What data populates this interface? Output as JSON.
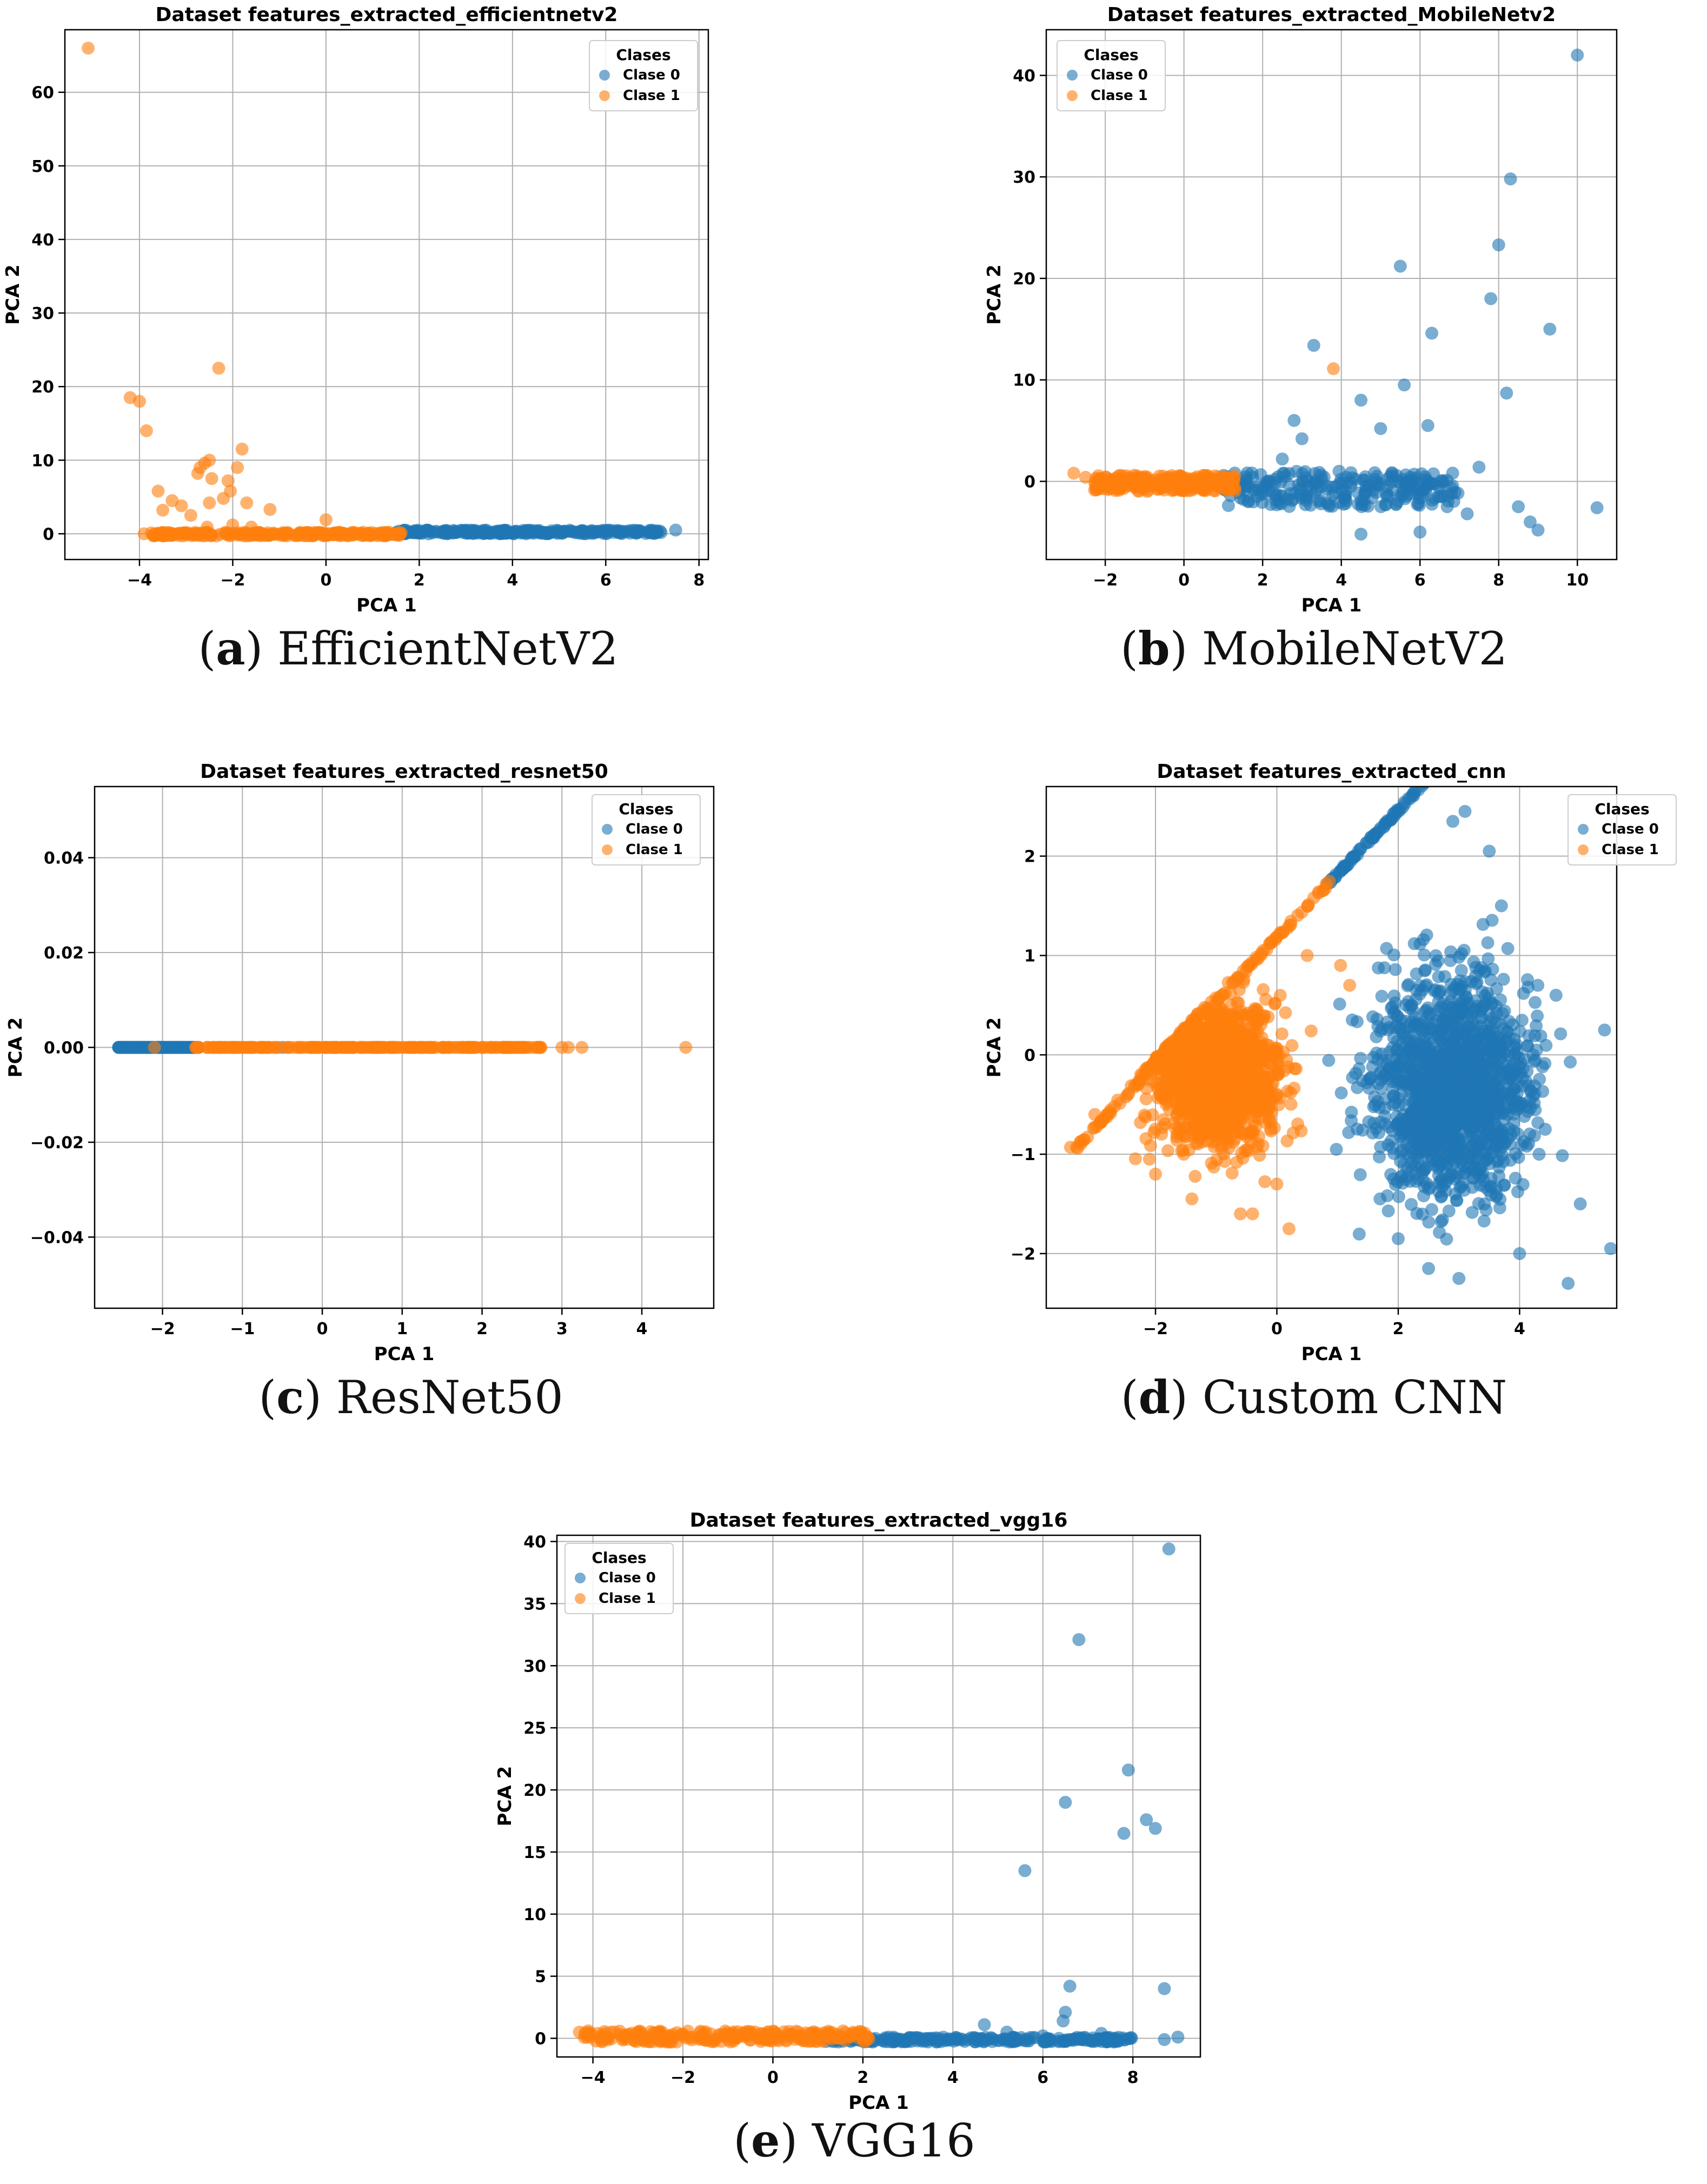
{
  "colors": {
    "clase0": "#1f77b4",
    "clase1": "#ff7f0e",
    "grid": "#b0b0b0",
    "axis": "#000000"
  },
  "legend_title": "Clases",
  "captions": [
    {
      "letter": "a",
      "paren_open": "(",
      "paren_close": ")",
      "text": " EfficientNetV2"
    },
    {
      "letter": "b",
      "paren_open": "(",
      "paren_close": ")",
      "text": " MobileNetV2"
    },
    {
      "letter": "c",
      "paren_open": "(",
      "paren_close": ")",
      "text": " ResNet50"
    },
    {
      "letter": "d",
      "paren_open": "(",
      "paren_close": ")",
      "text": " Custom CNN"
    },
    {
      "letter": "e",
      "paren_open": "(",
      "paren_close": ")",
      "text": " VGG16"
    }
  ],
  "chart_data": [
    {
      "type": "scatter",
      "title": "Dataset features_extracted_efficientnetv2",
      "xlabel": "PCA 1",
      "ylabel": "PCA 2",
      "xlim": [
        -5.6,
        8.2
      ],
      "ylim": [
        -3.5,
        68.5
      ],
      "xticks": [
        -4,
        -2,
        0,
        2,
        4,
        6,
        8
      ],
      "xtick_labels": [
        "−4",
        "−2",
        "0",
        "2",
        "4",
        "6",
        "8"
      ],
      "yticks": [
        0,
        10,
        20,
        30,
        40,
        50,
        60
      ],
      "ytick_labels": [
        "0",
        "10",
        "20",
        "30",
        "40",
        "50",
        "60"
      ],
      "grid": true,
      "legend_position": "upper right",
      "series": [
        {
          "name": "Clase 0",
          "band_x": [
            1.5,
            7.2
          ],
          "band_y": [
            0.0,
            0.5
          ],
          "points": [
            [
              7.5,
              0.5
            ],
            [
              7.1,
              0.4
            ],
            [
              6.6,
              0.3
            ],
            [
              6.2,
              0.4
            ],
            [
              5.8,
              0.3
            ],
            [
              5.4,
              0.2
            ],
            [
              5.0,
              0.3
            ],
            [
              4.6,
              0.2
            ],
            [
              4.2,
              0.2
            ],
            [
              3.8,
              0.1
            ],
            [
              3.4,
              0.1
            ],
            [
              3.0,
              0.1
            ],
            [
              2.6,
              0.0
            ],
            [
              2.2,
              0.0
            ],
            [
              2.0,
              0.1
            ]
          ]
        },
        {
          "name": "Clase 1",
          "band_x": [
            -3.8,
            1.7
          ],
          "band_y": [
            -0.3,
            0.2
          ],
          "points": [
            [
              -5.1,
              66
            ],
            [
              -4.2,
              18.5
            ],
            [
              -4.0,
              18
            ],
            [
              -3.85,
              14
            ],
            [
              -3.6,
              5.8
            ],
            [
              -3.5,
              3.2
            ],
            [
              -3.3,
              4.5
            ],
            [
              -3.1,
              3.8
            ],
            [
              -2.7,
              9
            ],
            [
              -2.6,
              9.6
            ],
            [
              -2.75,
              8.2
            ],
            [
              -2.5,
              10
            ],
            [
              -2.45,
              7.5
            ],
            [
              -2.3,
              22.5
            ],
            [
              -2.2,
              4.8
            ],
            [
              -2.1,
              7.2
            ],
            [
              -2.05,
              5.8
            ],
            [
              -1.8,
              11.5
            ],
            [
              -1.9,
              9
            ],
            [
              -1.7,
              4.2
            ],
            [
              -1.2,
              3.3
            ],
            [
              -2.5,
              4.2
            ],
            [
              -2.9,
              2.5
            ],
            [
              -2.0,
              1.2
            ],
            [
              -1.6,
              0.9
            ],
            [
              0.0,
              1.9
            ],
            [
              -2.55,
              0.9
            ],
            [
              -3.9,
              0.0
            ]
          ]
        }
      ]
    },
    {
      "type": "scatter",
      "title": "Dataset features_extracted_MobileNetv2",
      "xlabel": "PCA 1",
      "ylabel": "PCA 2",
      "xlim": [
        -3.5,
        11.0
      ],
      "ylim": [
        -7.7,
        44.5
      ],
      "xticks": [
        -2,
        0,
        2,
        4,
        6,
        8,
        10
      ],
      "xtick_labels": [
        "−2",
        "0",
        "2",
        "4",
        "6",
        "8",
        "10"
      ],
      "yticks": [
        0,
        10,
        20,
        30,
        40
      ],
      "ytick_labels": [
        "0",
        "10",
        "20",
        "30",
        "40"
      ],
      "grid": true,
      "legend_position": "upper left",
      "series": [
        {
          "name": "Clase 0",
          "band_x": [
            1.0,
            7.0
          ],
          "band_y": [
            -2.5,
            1.0
          ],
          "points": [
            [
              10.0,
              42
            ],
            [
              8.3,
              29.8
            ],
            [
              8.0,
              23.3
            ],
            [
              7.8,
              18
            ],
            [
              9.3,
              15
            ],
            [
              6.3,
              14.6
            ],
            [
              5.5,
              21.2
            ],
            [
              3.3,
              13.4
            ],
            [
              5.6,
              9.5
            ],
            [
              6.2,
              5.5
            ],
            [
              8.2,
              8.7
            ],
            [
              4.5,
              8.0
            ],
            [
              2.8,
              6
            ],
            [
              5.0,
              5.2
            ],
            [
              3.0,
              4.2
            ],
            [
              2.5,
              2.2
            ],
            [
              7.5,
              1.4
            ],
            [
              8.8,
              -4.0
            ],
            [
              9.0,
              -4.8
            ],
            [
              10.5,
              -2.6
            ],
            [
              6.0,
              -5.0
            ],
            [
              4.5,
              -5.2
            ],
            [
              8.5,
              -2.5
            ],
            [
              7.2,
              -3.2
            ]
          ]
        },
        {
          "name": "Clase 1",
          "band_x": [
            -2.3,
            1.3
          ],
          "band_y": [
            -1.0,
            0.6
          ],
          "points": [
            [
              -2.8,
              0.8
            ],
            [
              -2.5,
              0.4
            ],
            [
              3.8,
              11.1
            ],
            [
              1.1,
              0.2
            ],
            [
              0.9,
              -0.6
            ],
            [
              1.3,
              -0.9
            ]
          ]
        }
      ]
    },
    {
      "type": "scatter",
      "title": "Dataset features_extracted_resnet50",
      "xlabel": "PCA 1",
      "ylabel": "PCA 2",
      "xlim": [
        -2.85,
        4.9
      ],
      "ylim": [
        -0.055,
        0.055
      ],
      "xticks": [
        -2,
        -1,
        0,
        1,
        2,
        3,
        4
      ],
      "xtick_labels": [
        "−2",
        "−1",
        "0",
        "1",
        "2",
        "3",
        "4"
      ],
      "yticks": [
        -0.04,
        -0.02,
        0.0,
        0.02,
        0.04
      ],
      "ytick_labels": [
        "−0.04",
        "−0.02",
        "0.00",
        "0.02",
        "0.04"
      ],
      "grid": true,
      "legend_position": "upper right",
      "series": [
        {
          "name": "Clase 0",
          "band_x": [
            -2.55,
            -1.55
          ],
          "band_y": [
            0,
            0
          ],
          "points": [
            [
              -2.55,
              0
            ],
            [
              -1.3,
              0
            ],
            [
              -0.5,
              0
            ]
          ]
        },
        {
          "name": "Clase 1",
          "band_x": [
            -1.6,
            2.75
          ],
          "band_y": [
            0,
            0
          ],
          "points": [
            [
              3.0,
              0
            ],
            [
              3.08,
              0
            ],
            [
              3.25,
              0
            ],
            [
              4.55,
              0
            ],
            [
              -2.1,
              0
            ]
          ]
        }
      ]
    },
    {
      "type": "scatter",
      "title": "Dataset features_extracted_cnn",
      "xlabel": "PCA 1",
      "ylabel": "PCA 2",
      "xlim": [
        -3.8,
        5.6
      ],
      "ylim": [
        -2.55,
        2.7
      ],
      "xticks": [
        -2,
        0,
        2,
        4
      ],
      "xtick_labels": [
        "−2",
        "0",
        "2",
        "4"
      ],
      "yticks": [
        -2,
        -1,
        0,
        1,
        2
      ],
      "ytick_labels": [
        "−2",
        "−1",
        "0",
        "1",
        "2"
      ],
      "grid": true,
      "legend_position": "upper right",
      "series": [
        {
          "name": "Clase 0",
          "blob_center": [
            2.9,
            -0.3
          ],
          "blob_spread": [
            0.9,
            0.75
          ],
          "points": [
            [
              3.1,
              2.45
            ],
            [
              2.9,
              2.35
            ],
            [
              3.5,
              2.05
            ],
            [
              3.7,
              1.5
            ],
            [
              4.3,
              0.7
            ],
            [
              4.6,
              0.6
            ],
            [
              5.4,
              0.25
            ],
            [
              5.5,
              -1.95
            ],
            [
              5.0,
              -1.5
            ],
            [
              4.8,
              -2.3
            ],
            [
              3.0,
              -2.25
            ],
            [
              2.5,
              -2.15
            ],
            [
              4.0,
              -2.0
            ],
            [
              1.7,
              -1.45
            ],
            [
              2.0,
              -1.85
            ]
          ]
        },
        {
          "name": "Clase 1",
          "blob_center": [
            -1.0,
            -0.2
          ],
          "blob_spread": [
            0.7,
            0.5
          ],
          "points": [
            [
              -3.4,
              -0.93
            ],
            [
              -3.0,
              -0.6
            ],
            [
              -2.1,
              -1.05
            ],
            [
              -2.0,
              -1.2
            ],
            [
              -1.4,
              -1.45
            ],
            [
              -0.6,
              -1.6
            ],
            [
              -0.4,
              -1.6
            ],
            [
              0.2,
              -1.75
            ],
            [
              0.0,
              -1.3
            ],
            [
              1.05,
              0.9
            ],
            [
              1.2,
              0.7
            ],
            [
              0.5,
              1.0
            ]
          ]
        }
      ]
    },
    {
      "type": "scatter",
      "title": "Dataset features_extracted_vgg16",
      "xlabel": "PCA 1",
      "ylabel": "PCA 2",
      "xlim": [
        -4.8,
        9.5
      ],
      "ylim": [
        -1.5,
        40.5
      ],
      "xticks": [
        -4,
        -2,
        0,
        2,
        4,
        6,
        8
      ],
      "xtick_labels": [
        "−4",
        "−2",
        "0",
        "2",
        "4",
        "6",
        "8"
      ],
      "yticks": [
        0,
        5,
        10,
        15,
        20,
        25,
        30,
        35,
        40
      ],
      "ytick_labels": [
        "0",
        "5",
        "10",
        "15",
        "20",
        "25",
        "30",
        "35",
        "40"
      ],
      "grid": true,
      "legend_position": "upper left",
      "series": [
        {
          "name": "Clase 0",
          "band_x": [
            1.0,
            8.0
          ],
          "band_y": [
            -0.3,
            0.1
          ],
          "points": [
            [
              8.8,
              39.4
            ],
            [
              6.8,
              32.1
            ],
            [
              6.5,
              19
            ],
            [
              7.9,
              21.6
            ],
            [
              8.3,
              17.6
            ],
            [
              8.5,
              16.9
            ],
            [
              7.8,
              16.5
            ],
            [
              5.6,
              13.5
            ],
            [
              6.6,
              4.2
            ],
            [
              8.7,
              4.0
            ],
            [
              6.5,
              2.1
            ],
            [
              6.45,
              1.4
            ],
            [
              4.7,
              1.1
            ],
            [
              5.2,
              0.5
            ],
            [
              9.0,
              0.1
            ],
            [
              8.7,
              -0.1
            ],
            [
              7.3,
              0.4
            ],
            [
              6.0,
              0.2
            ]
          ]
        },
        {
          "name": "Clase 1",
          "band_x": [
            -4.2,
            2.2
          ],
          "band_y": [
            -0.3,
            0.6
          ],
          "points": [
            [
              -4.3,
              0.5
            ],
            [
              -4.1,
              0.6
            ],
            [
              -3.9,
              0.4
            ],
            [
              -3.6,
              0.5
            ]
          ]
        }
      ]
    }
  ]
}
